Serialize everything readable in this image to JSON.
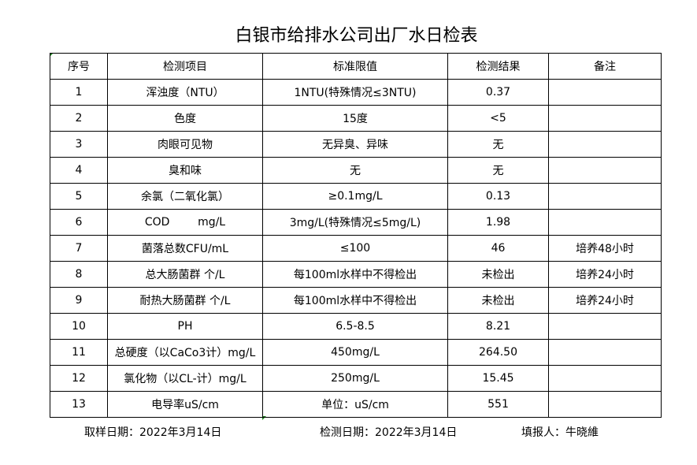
{
  "title": "白银市给排水公司出厂水日检表",
  "headers": [
    "序号",
    "检测项目",
    "标准限值",
    "检测结果",
    "备注"
  ],
  "rows": [
    [
      "1",
      "浑浊度（NTU）",
      "1NTU(特殊情况≤3NTU)",
      "0.37",
      ""
    ],
    [
      "2",
      "色度",
      "15度",
      "<5",
      ""
    ],
    [
      "3",
      "肉眼可见物",
      "无异臭、异味",
      "无",
      ""
    ],
    [
      "4",
      "臭和味",
      "无",
      "无",
      ""
    ],
    [
      "5",
      "余氯（二氧化氯）",
      "≥0.1mg/L",
      "0.13",
      ""
    ],
    [
      "6",
      "COD        mg/L",
      "3mg/L(特殊情况≤5mg/L)",
      "1.98",
      ""
    ],
    [
      "7",
      "菌落总数CFU/mL",
      "≤100",
      "46",
      "培养48小时"
    ],
    [
      "8",
      "总大肠菌群 个/L",
      "每100ml水样中不得检出",
      "未检出",
      "培养24小时"
    ],
    [
      "9",
      "耐热大肠菌群 个/L",
      "每100ml水样中不得检出",
      "未检出",
      "培养24小时"
    ],
    [
      "10",
      "PH",
      "6.5-8.5",
      "8.21",
      ""
    ],
    [
      "11",
      "总硬度（以CaCo3计）mg/L",
      "450mg/L",
      "264.50",
      ""
    ],
    [
      "12",
      "氯化物（以CL-计）mg/L",
      "250mg/L",
      "15.45",
      ""
    ],
    [
      "13",
      "电导率uS/cm",
      "单位：uS/cm",
      "551",
      ""
    ]
  ],
  "footer": {
    "sampling_date": "取样日期：2022年3月14日",
    "test_date": "检测日期：2022年3月14日",
    "reporter": "填报人：牛晓維"
  }
}
